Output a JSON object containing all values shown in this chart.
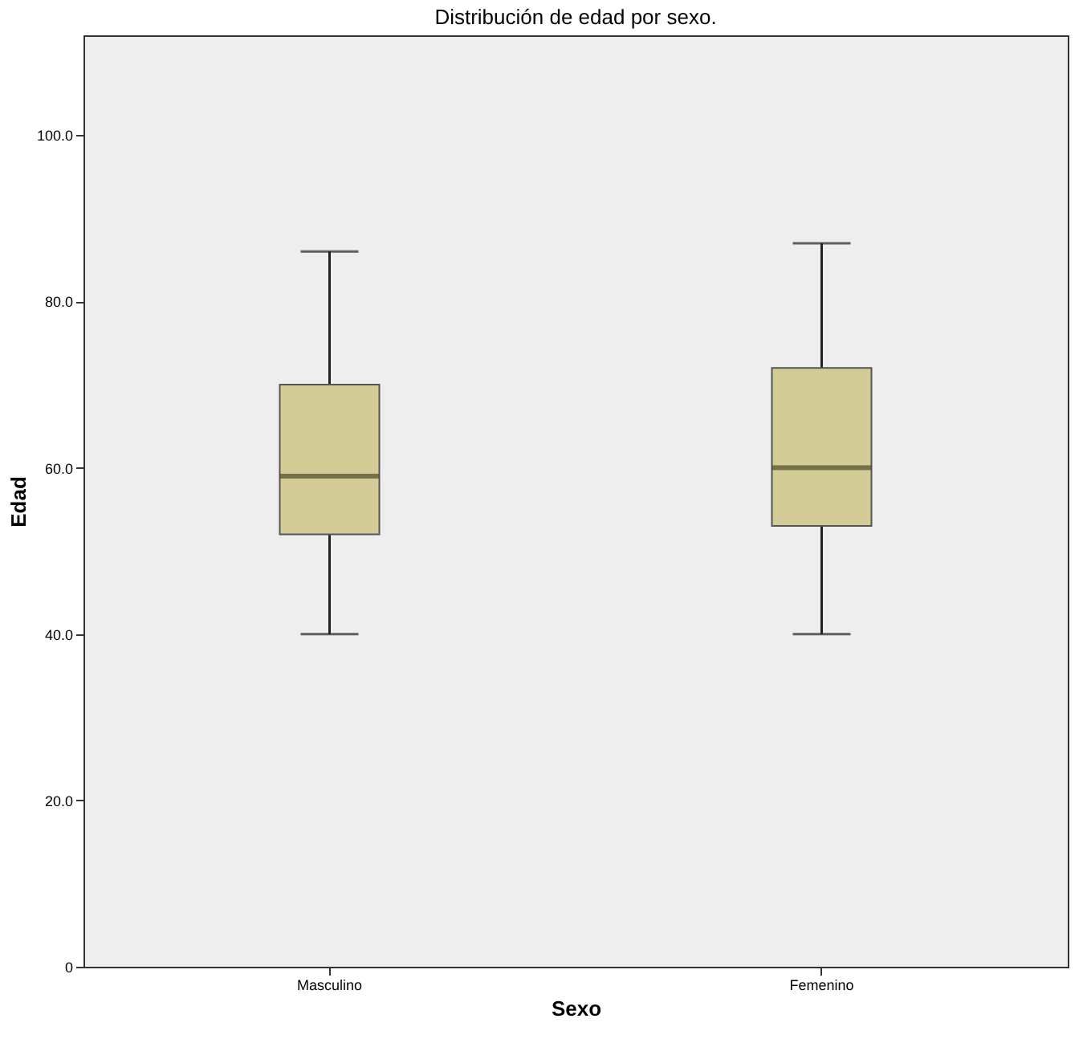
{
  "chart_data": {
    "type": "box",
    "title": "Distribución de edad por sexo.",
    "xlabel": "Sexo",
    "ylabel": "Edad",
    "categories": [
      "Masculino",
      "Femenino"
    ],
    "boxes": [
      {
        "low": 40,
        "q1": 52,
        "median": 59,
        "q3": 70,
        "high": 86
      },
      {
        "low": 40,
        "q1": 53,
        "median": 60,
        "q3": 72,
        "high": 87
      }
    ],
    "color": "#d4cc97",
    "ylim": [
      0,
      112
    ],
    "yticks": [
      {
        "value": 0,
        "label": "0"
      },
      {
        "value": 20,
        "label": "20.0"
      },
      {
        "value": 40,
        "label": "40.0"
      },
      {
        "value": 60,
        "label": "60.0"
      },
      {
        "value": 80,
        "label": "80.0"
      },
      {
        "value": 100,
        "label": "100.0"
      }
    ],
    "grid": false
  }
}
